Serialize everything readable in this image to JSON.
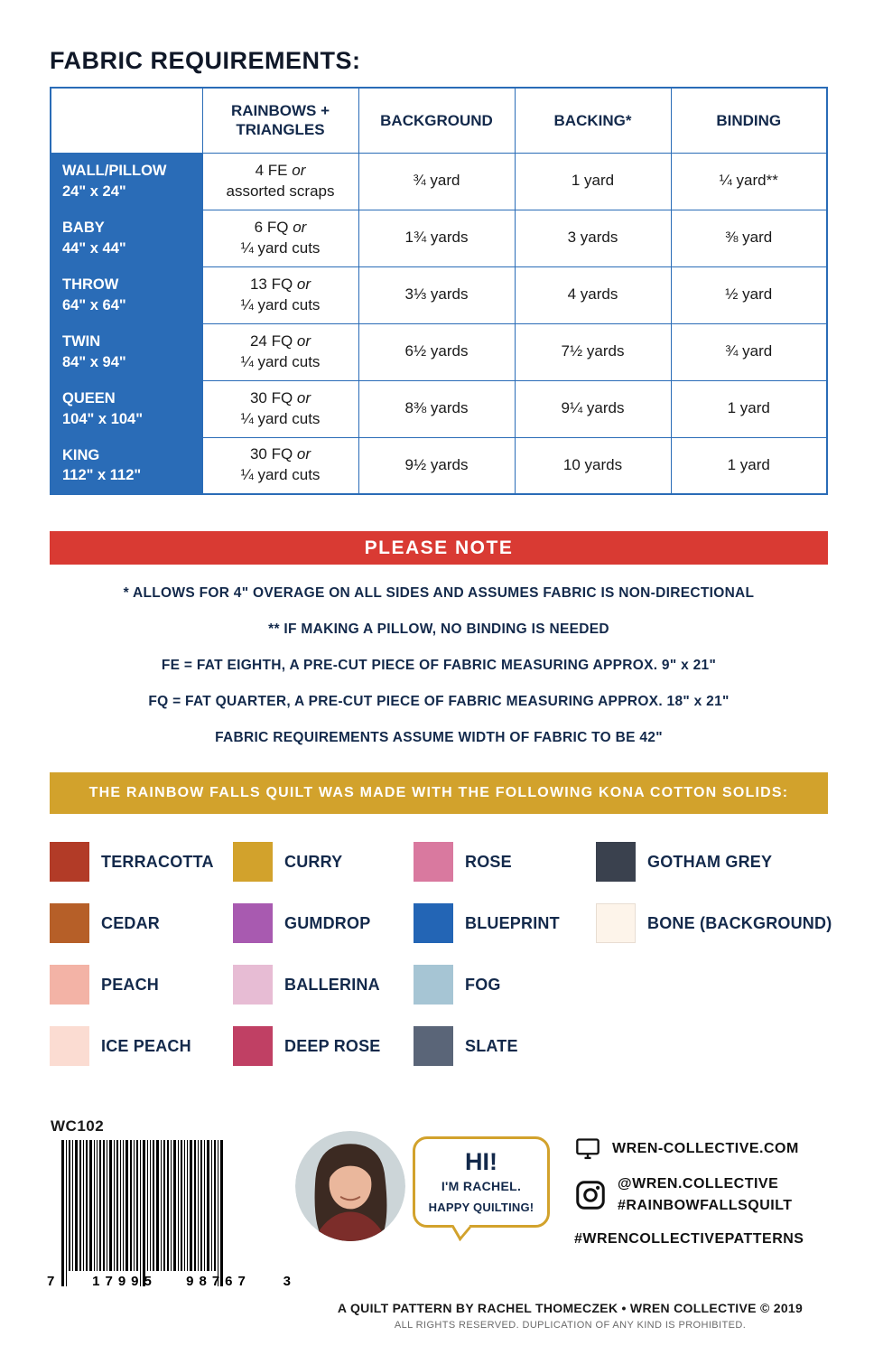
{
  "page": {
    "title": "FABRIC REQUIREMENTS:"
  },
  "table": {
    "columns": [
      "RAINBOWS + TRIANGLES",
      "BACKGROUND",
      "BACKING*",
      "BINDING"
    ],
    "rows": [
      {
        "size": "WALL/PILLOW",
        "dims": "24\" x 24\"",
        "cells": [
          [
            "4 FE or",
            "assorted scraps"
          ],
          [
            "¾ yard"
          ],
          [
            "1 yard"
          ],
          [
            "¼ yard**"
          ]
        ]
      },
      {
        "size": "BABY",
        "dims": "44\" x 44\"",
        "cells": [
          [
            "6 FQ or",
            "¼ yard cuts"
          ],
          [
            "1¾ yards"
          ],
          [
            "3 yards"
          ],
          [
            "⅜ yard"
          ]
        ]
      },
      {
        "size": "THROW",
        "dims": "64\" x 64\"",
        "cells": [
          [
            "13 FQ or",
            "¼ yard cuts"
          ],
          [
            "3⅓ yards"
          ],
          [
            "4 yards"
          ],
          [
            "½ yard"
          ]
        ]
      },
      {
        "size": "TWIN",
        "dims": "84\" x 94\"",
        "cells": [
          [
            "24 FQ or",
            "¼ yard cuts"
          ],
          [
            "6½ yards"
          ],
          [
            "7½ yards"
          ],
          [
            "¾ yard"
          ]
        ]
      },
      {
        "size": "QUEEN",
        "dims": "104\" x 104\"",
        "cells": [
          [
            "30 FQ or",
            "¼ yard cuts"
          ],
          [
            "8⅜ yards"
          ],
          [
            "9¼ yards"
          ],
          [
            "1 yard"
          ]
        ]
      },
      {
        "size": "KING",
        "dims": "112\" x 112\"",
        "cells": [
          [
            "30 FQ or",
            "¼ yard cuts"
          ],
          [
            "9½ yards"
          ],
          [
            "10 yards"
          ],
          [
            "1 yard"
          ]
        ]
      }
    ]
  },
  "note_banner": "PLEASE NOTE",
  "notes": [
    "* ALLOWS FOR 4\" OVERAGE ON ALL SIDES AND ASSUMES FABRIC IS NON-DIRECTIONAL",
    "** IF MAKING A PILLOW, NO BINDING IS NEEDED",
    "FE = FAT EIGHTH, A PRE-CUT PIECE OF FABRIC MEASURING APPROX. 9\" x 21\"",
    "FQ = FAT QUARTER, A PRE-CUT PIECE OF FABRIC MEASURING APPROX. 18\" x 21\"",
    "FABRIC REQUIREMENTS ASSUME WIDTH OF FABRIC TO BE 42\""
  ],
  "kona_banner": "THE RAINBOW FALLS QUILT WAS MADE WITH THE FOLLOWING KONA COTTON SOLIDS:",
  "swatch_rows": [
    [
      {
        "name": "TERRACOTTA",
        "color": "#b23b27"
      },
      {
        "name": "CURRY",
        "color": "#d2a22c"
      },
      {
        "name": "ROSE",
        "color": "#d9799f"
      },
      {
        "name": "GOTHAM GREY",
        "color": "#3a414e"
      }
    ],
    [
      {
        "name": "CEDAR",
        "color": "#b65f28"
      },
      {
        "name": "GUMDROP",
        "color": "#a85ab0"
      },
      {
        "name": "BLUEPRINT",
        "color": "#2365b5"
      },
      {
        "name": "BONE (BACKGROUND)",
        "color": "#fdf4ea",
        "light": true
      }
    ],
    [
      {
        "name": "PEACH",
        "color": "#f3b3a6"
      },
      {
        "name": "BALLERINA",
        "color": "#e7bcd4"
      },
      {
        "name": "FOG",
        "color": "#a6c5d4"
      },
      null
    ],
    [
      {
        "name": "ICE PEACH",
        "color": "#fbdcd2"
      },
      {
        "name": "DEEP ROSE",
        "color": "#c04064"
      },
      {
        "name": "SLATE",
        "color": "#5a6578"
      },
      null
    ]
  ],
  "footer": {
    "sku": "WC102",
    "barcode_digits": {
      "d0": "7",
      "g1": "17995",
      "g2": "98767",
      "d3": "3"
    },
    "bubble": {
      "line1": "HI!",
      "line2": "I'M RACHEL.",
      "line3": "HAPPY QUILTING!"
    },
    "website": "WREN-COLLECTIVE.COM",
    "instagram_handle": "@WREN.COLLECTIVE",
    "instagram_tag": "#RAINBOWFALLSQUILT",
    "patterns_tag": "#WRENCOLLECTIVEPATTERNS",
    "credit": "A QUILT PATTERN BY RACHEL THOMECZEK • WREN COLLECTIVE © 2019",
    "rights": "ALL RIGHTS RESERVED. DUPLICATION OF ANY KIND IS PROHIBITED."
  },
  "colors": {
    "table_blue": "#2a6cb7",
    "note_red": "#d93a33",
    "kona_gold": "#d2a22c"
  }
}
